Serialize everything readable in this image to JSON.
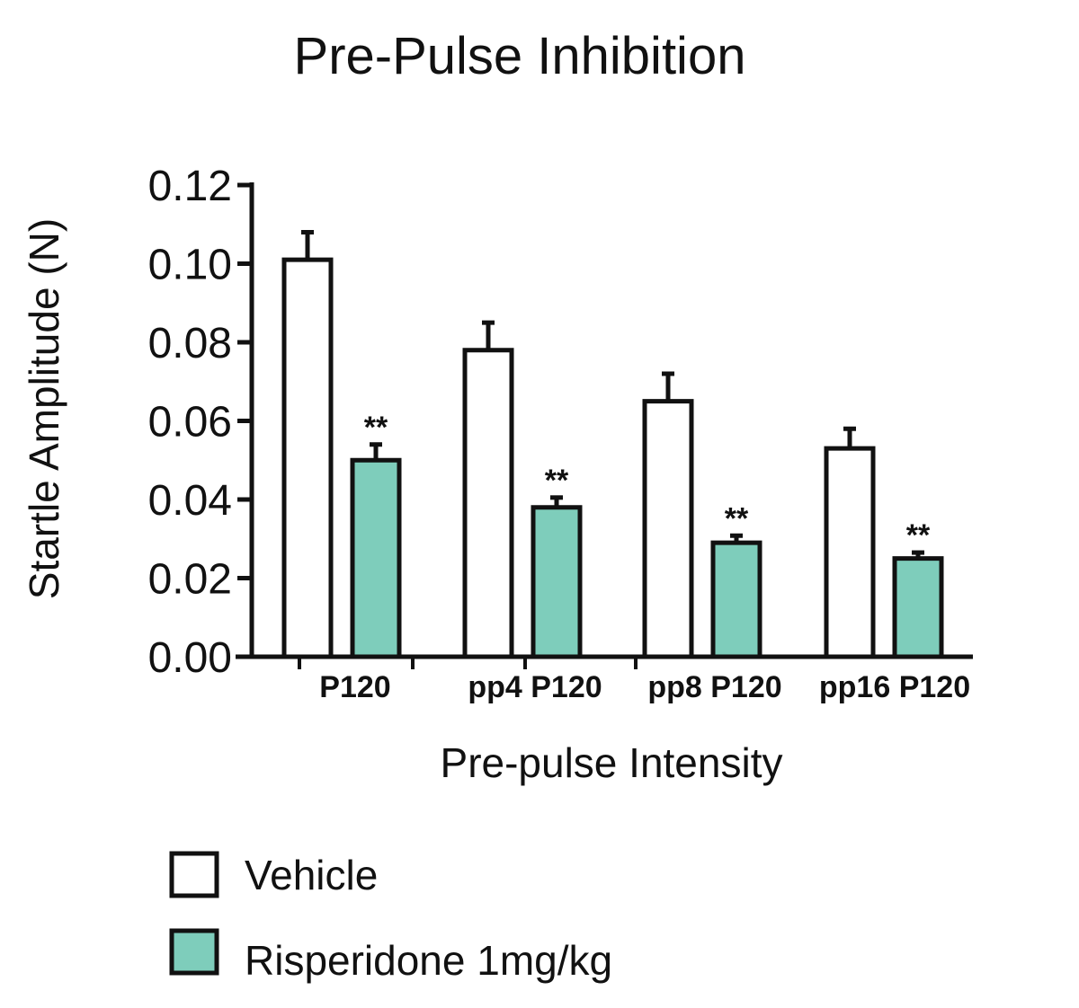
{
  "chart_data": {
    "type": "bar",
    "title": "Pre-Pulse Inhibition",
    "xlabel": "Pre-pulse Intensity",
    "ylabel": "Startle Amplitude (N)",
    "ylim": [
      0,
      0.12
    ],
    "yticks": [
      "0.00",
      "0.02",
      "0.04",
      "0.06",
      "0.08",
      "0.10",
      "0.12"
    ],
    "categories": [
      "P120",
      "pp4 P120",
      "pp8 P120",
      "pp16 P120"
    ],
    "series": [
      {
        "name": "Vehicle",
        "color": "#ffffff",
        "values": [
          0.101,
          0.078,
          0.065,
          0.053
        ],
        "error": [
          0.007,
          0.007,
          0.007,
          0.005
        ]
      },
      {
        "name": "Risperidone 1mg/kg",
        "color": "#7ecdbb",
        "values": [
          0.05,
          0.038,
          0.029,
          0.025
        ],
        "error": [
          0.004,
          0.0025,
          0.0018,
          0.0015
        ]
      }
    ],
    "annotations": [
      "**",
      "**",
      "**",
      "**"
    ],
    "grid": false,
    "legend": "bottom-left"
  }
}
